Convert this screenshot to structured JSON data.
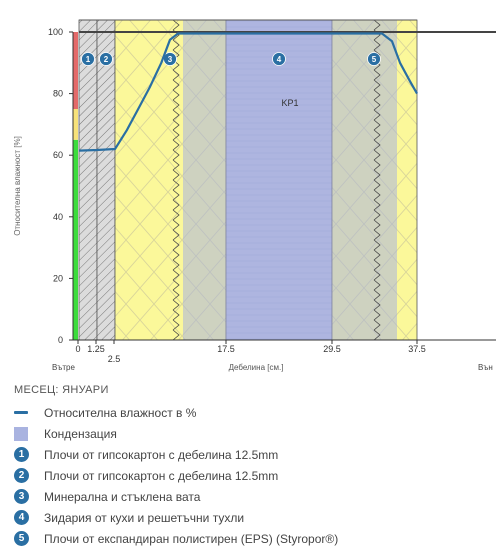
{
  "chart_data": {
    "type": "area",
    "ylabel": "Относителна влажност [%]",
    "xlabel": "Дебелина [см.]",
    "x_left_label": "Вътре",
    "x_right_label": "Вън",
    "ylim": [
      0,
      100
    ],
    "y_ticks": [
      0,
      20,
      40,
      60,
      80,
      100
    ],
    "x_tick_labels": [
      {
        "value": 0,
        "label": "0"
      },
      {
        "value": 1.25,
        "label": "1.25"
      },
      {
        "value": 2.5,
        "label": "2.5"
      },
      {
        "value": 17.5,
        "label": "17.5"
      },
      {
        "value": 29.5,
        "label": "29.5"
      },
      {
        "value": 37.5,
        "label": "37.5"
      }
    ],
    "layers": [
      {
        "id": "1",
        "from": 0,
        "to": 1.25,
        "material": "gypsum",
        "color": "#d6d6d6"
      },
      {
        "id": "2",
        "from": 1.25,
        "to": 2.5,
        "material": "gypsum",
        "color": "#d6d6d6"
      },
      {
        "id": "3",
        "from": 2.5,
        "to": 17.5,
        "material": "mineral-wool",
        "color": "#fbf89a"
      },
      {
        "id": "4",
        "from": 17.5,
        "to": 29.5,
        "material": "brick",
        "color": "#b3b8df"
      },
      {
        "id": "5",
        "from": 29.5,
        "to": 37.5,
        "material": "eps",
        "color": "#fbf89a"
      }
    ],
    "condensation_zone": {
      "from": 12.0,
      "to": 34.5,
      "label": "KP1"
    },
    "series": [
      {
        "name": "Относителна влажност в %",
        "color": "#2a6fa3",
        "points": [
          [
            0,
            61.5
          ],
          [
            1.25,
            61.7
          ],
          [
            2.5,
            62.0
          ],
          [
            4.5,
            68
          ],
          [
            6.5,
            75
          ],
          [
            8.5,
            82
          ],
          [
            10.5,
            90
          ],
          [
            12.0,
            97.5
          ],
          [
            12.5,
            99.5
          ],
          [
            13.5,
            99.5
          ],
          [
            17.5,
            99.5
          ],
          [
            29.5,
            99.5
          ],
          [
            34.0,
            99.5
          ],
          [
            34.8,
            97
          ],
          [
            35.8,
            90
          ],
          [
            36.8,
            84
          ],
          [
            37.5,
            80
          ]
        ]
      }
    ],
    "indicator_bar": [
      {
        "from": 0,
        "to": 65,
        "color": "#3ddc3d"
      },
      {
        "from": 65,
        "to": 75,
        "color": "#f7e27a"
      },
      {
        "from": 75,
        "to": 100,
        "color": "#e46a6a"
      }
    ]
  },
  "legend": {
    "title": "МЕСЕЦ: ЯНУАРИ",
    "items": [
      {
        "type": "line",
        "label": "Относителна влажност в %"
      },
      {
        "type": "square",
        "label": "Кондензация"
      },
      {
        "type": "badge",
        "badge": "1",
        "label": "Плочи от гипсокартон с дебелина 12.5mm"
      },
      {
        "type": "badge",
        "badge": "2",
        "label": "Плочи от гипсокартон с дебелина 12.5mm"
      },
      {
        "type": "badge",
        "badge": "3",
        "label": "Минерална и стъклена вата"
      },
      {
        "type": "badge",
        "badge": "4",
        "label": "Зидария от кухи и решетъчни тухли"
      },
      {
        "type": "badge",
        "badge": "5",
        "label": "Плочи от експандиран полистирен (EPS) (Styropor®)"
      }
    ]
  }
}
